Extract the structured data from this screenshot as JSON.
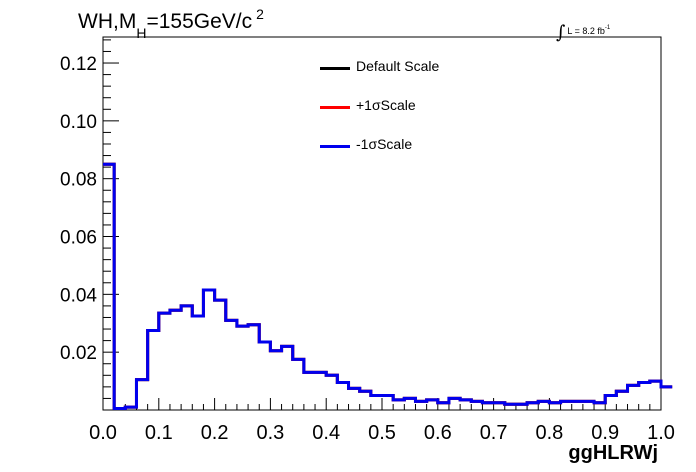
{
  "title": {
    "main": "WH,M",
    "sub": "H",
    "rest": "=155GeV/c",
    "sup": "2"
  },
  "luminosity": {
    "integral": "∫",
    "text": "L = 8.2 fb",
    "exp": "-1"
  },
  "legend": [
    {
      "label": "Default Scale",
      "color": "#000000"
    },
    {
      "label": "+1σScale",
      "color": "#ff0000"
    },
    {
      "label": "-1σScale",
      "color": "#0000ee"
    }
  ],
  "chart_data": {
    "type": "histogram",
    "xlabel": "ggHLRWj",
    "ylabel": "",
    "xlim": [
      0.0,
      1.0
    ],
    "ylim": [
      0.0,
      0.129
    ],
    "x_ticks": [
      "0.0",
      "0.1",
      "0.2",
      "0.3",
      "0.4",
      "0.5",
      "0.6",
      "0.7",
      "0.8",
      "0.9",
      "1.0"
    ],
    "y_ticks": [
      "0.02",
      "0.04",
      "0.06",
      "0.08",
      "0.10",
      "0.12"
    ],
    "bin_width": 0.02,
    "bin_edges_start": 0.0,
    "series": [
      {
        "name": "Default Scale",
        "color": "#000000",
        "values": [
          0.085,
          0.0005,
          0.001,
          0.0105,
          0.0275,
          0.0335,
          0.0345,
          0.036,
          0.0325,
          0.0415,
          0.038,
          0.031,
          0.029,
          0.0295,
          0.0235,
          0.0205,
          0.022,
          0.0175,
          0.013,
          0.013,
          0.012,
          0.0095,
          0.0075,
          0.0065,
          0.005,
          0.005,
          0.0035,
          0.004,
          0.003,
          0.0035,
          0.0025,
          0.004,
          0.0035,
          0.003,
          0.0025,
          0.0025,
          0.002,
          0.002,
          0.0025,
          0.003,
          0.0025,
          0.003,
          0.003,
          0.003,
          0.0025,
          0.005,
          0.0065,
          0.0085,
          0.0095,
          0.01,
          0.008
        ]
      },
      {
        "name": "+1σScale",
        "color": "#ff0000",
        "values": [
          0.085,
          0.0005,
          0.001,
          0.0105,
          0.0275,
          0.0335,
          0.0345,
          0.036,
          0.0325,
          0.0415,
          0.038,
          0.031,
          0.029,
          0.0295,
          0.0235,
          0.0205,
          0.022,
          0.0175,
          0.013,
          0.013,
          0.012,
          0.0095,
          0.0075,
          0.0065,
          0.005,
          0.005,
          0.0035,
          0.004,
          0.003,
          0.0035,
          0.0025,
          0.004,
          0.0035,
          0.003,
          0.0025,
          0.0025,
          0.002,
          0.002,
          0.0025,
          0.003,
          0.0025,
          0.003,
          0.003,
          0.003,
          0.0025,
          0.005,
          0.0065,
          0.0085,
          0.0095,
          0.01,
          0.008
        ]
      },
      {
        "name": "-1σScale",
        "color": "#0000ee",
        "values": [
          0.085,
          0.0005,
          0.001,
          0.0105,
          0.0275,
          0.0335,
          0.0345,
          0.036,
          0.0325,
          0.0415,
          0.038,
          0.031,
          0.029,
          0.0295,
          0.0235,
          0.0205,
          0.022,
          0.0175,
          0.013,
          0.013,
          0.012,
          0.0095,
          0.0075,
          0.0065,
          0.005,
          0.005,
          0.0035,
          0.004,
          0.003,
          0.0035,
          0.0025,
          0.004,
          0.0035,
          0.003,
          0.0025,
          0.0025,
          0.002,
          0.002,
          0.0025,
          0.003,
          0.0025,
          0.003,
          0.003,
          0.003,
          0.0025,
          0.005,
          0.0065,
          0.0085,
          0.0095,
          0.01,
          0.008
        ]
      }
    ]
  }
}
